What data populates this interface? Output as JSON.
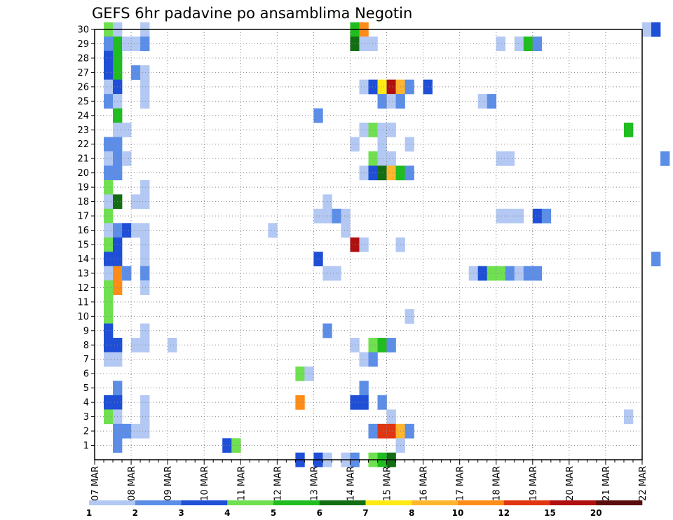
{
  "chart_data": {
    "type": "heatmap",
    "title": "GEFS 6hr padavine po ansamblima Negotin",
    "xlabel": "",
    "ylabel": "",
    "x_tick_labels": [
      "07 MAR",
      "08 MAR",
      "09 MAR",
      "10 MAR",
      "11 MAR",
      "12 MAR",
      "13 MAR",
      "14 MAR",
      "15 MAR",
      "16 MAR",
      "17 MAR",
      "18 MAR",
      "19 MAR",
      "20 MAR",
      "21 MAR",
      "22 MAR"
    ],
    "y_tick_labels": [
      "1",
      "2",
      "3",
      "4",
      "5",
      "6",
      "7",
      "8",
      "9",
      "10",
      "11",
      "12",
      "13",
      "14",
      "15",
      "16",
      "17",
      "18",
      "19",
      "20",
      "21",
      "22",
      "23",
      "24",
      "25",
      "26",
      "27",
      "28",
      "29",
      "30"
    ],
    "x_range_days": [
      0,
      15
    ],
    "y_range": [
      0,
      30
    ],
    "steps_per_day": 4,
    "grid": true,
    "legend": {
      "placement": "bottom",
      "labels": [
        "1",
        "2",
        "3",
        "4",
        "5",
        "6",
        "7",
        "8",
        "10",
        "12",
        "15",
        "20"
      ],
      "colors": [
        "#b3c8f3",
        "#5c8ee8",
        "#1f4fd6",
        "#6fe050",
        "#1fbd1f",
        "#136e13",
        "#ffea14",
        "#ffb62d",
        "#ff8c17",
        "#e03510",
        "#b00f0f",
        "#5a0c0c"
      ]
    },
    "cells_note": "Each cell: [member, start_step, length_in_steps, color_class]. Step = 6 hours from 07 MAR 00Z. Color class 0..11 indexes legend.colors.",
    "cells": [
      [
        30,
        1,
        1,
        3
      ],
      [
        30,
        2,
        1,
        0
      ],
      [
        30,
        5,
        1,
        0
      ],
      [
        30,
        28,
        1,
        4
      ],
      [
        30,
        29,
        1,
        8
      ],
      [
        30,
        60,
        1,
        0
      ],
      [
        30,
        61,
        1,
        2
      ],
      [
        29,
        1,
        1,
        1
      ],
      [
        29,
        2,
        1,
        4
      ],
      [
        29,
        3,
        1,
        0
      ],
      [
        29,
        4,
        1,
        0
      ],
      [
        29,
        5,
        1,
        1
      ],
      [
        29,
        28,
        1,
        5
      ],
      [
        29,
        29,
        2,
        0
      ],
      [
        29,
        44,
        1,
        0
      ],
      [
        29,
        46,
        1,
        0
      ],
      [
        29,
        47,
        1,
        4
      ],
      [
        29,
        48,
        1,
        1
      ],
      [
        28,
        1,
        1,
        2
      ],
      [
        28,
        2,
        1,
        4
      ],
      [
        27,
        1,
        1,
        2
      ],
      [
        27,
        2,
        1,
        4
      ],
      [
        27,
        4,
        1,
        1
      ],
      [
        27,
        5,
        1,
        0
      ],
      [
        26,
        1,
        1,
        0
      ],
      [
        26,
        2,
        1,
        2
      ],
      [
        26,
        5,
        1,
        0
      ],
      [
        26,
        29,
        1,
        0
      ],
      [
        26,
        30,
        1,
        2
      ],
      [
        26,
        31,
        1,
        6
      ],
      [
        26,
        32,
        1,
        10
      ],
      [
        26,
        33,
        1,
        7
      ],
      [
        26,
        34,
        1,
        1
      ],
      [
        26,
        36,
        1,
        2
      ],
      [
        25,
        1,
        1,
        1
      ],
      [
        25,
        2,
        1,
        0
      ],
      [
        25,
        5,
        1,
        0
      ],
      [
        25,
        31,
        1,
        1
      ],
      [
        25,
        32,
        1,
        0
      ],
      [
        25,
        33,
        1,
        1
      ],
      [
        25,
        42,
        1,
        0
      ],
      [
        25,
        43,
        1,
        1
      ],
      [
        24,
        2,
        1,
        4
      ],
      [
        24,
        24,
        1,
        1
      ],
      [
        23,
        2,
        2,
        0
      ],
      [
        23,
        29,
        1,
        0
      ],
      [
        23,
        30,
        1,
        3
      ],
      [
        23,
        31,
        2,
        0
      ],
      [
        23,
        58,
        1,
        4
      ],
      [
        22,
        1,
        2,
        1
      ],
      [
        22,
        28,
        1,
        0
      ],
      [
        22,
        31,
        1,
        0
      ],
      [
        22,
        34,
        1,
        0
      ],
      [
        21,
        1,
        1,
        0
      ],
      [
        21,
        2,
        1,
        1
      ],
      [
        21,
        3,
        1,
        0
      ],
      [
        21,
        30,
        1,
        3
      ],
      [
        21,
        31,
        2,
        0
      ],
      [
        21,
        44,
        2,
        0
      ],
      [
        21,
        62,
        1,
        1
      ],
      [
        20,
        1,
        2,
        1
      ],
      [
        20,
        29,
        1,
        0
      ],
      [
        20,
        30,
        1,
        2
      ],
      [
        20,
        31,
        1,
        5
      ],
      [
        20,
        32,
        1,
        7
      ],
      [
        20,
        33,
        1,
        4
      ],
      [
        20,
        34,
        1,
        1
      ],
      [
        19,
        1,
        1,
        3
      ],
      [
        19,
        5,
        1,
        0
      ],
      [
        19,
        64,
        2,
        0
      ],
      [
        18,
        1,
        1,
        0
      ],
      [
        18,
        2,
        1,
        5
      ],
      [
        18,
        4,
        2,
        0
      ],
      [
        18,
        25,
        1,
        0
      ],
      [
        18,
        68,
        1,
        3
      ],
      [
        18,
        69,
        1,
        0
      ],
      [
        17,
        1,
        1,
        3
      ],
      [
        17,
        24,
        2,
        0
      ],
      [
        17,
        26,
        1,
        1
      ],
      [
        17,
        27,
        1,
        0
      ],
      [
        17,
        44,
        3,
        0
      ],
      [
        17,
        48,
        1,
        2
      ],
      [
        17,
        49,
        1,
        1
      ],
      [
        16,
        1,
        1,
        0
      ],
      [
        16,
        2,
        1,
        1
      ],
      [
        16,
        3,
        1,
        2
      ],
      [
        16,
        4,
        2,
        0
      ],
      [
        16,
        19,
        1,
        0
      ],
      [
        16,
        27,
        1,
        0
      ],
      [
        16,
        66,
        1,
        2
      ],
      [
        15,
        1,
        1,
        3
      ],
      [
        15,
        2,
        1,
        2
      ],
      [
        15,
        5,
        1,
        0
      ],
      [
        15,
        28,
        1,
        10
      ],
      [
        15,
        29,
        1,
        0
      ],
      [
        15,
        33,
        1,
        0
      ],
      [
        14,
        1,
        2,
        2
      ],
      [
        14,
        5,
        1,
        0
      ],
      [
        14,
        24,
        1,
        2
      ],
      [
        14,
        61,
        1,
        1
      ],
      [
        14,
        69,
        2,
        0
      ],
      [
        13,
        1,
        1,
        0
      ],
      [
        13,
        2,
        1,
        8
      ],
      [
        13,
        3,
        1,
        1
      ],
      [
        13,
        5,
        1,
        1
      ],
      [
        13,
        25,
        2,
        0
      ],
      [
        13,
        41,
        1,
        0
      ],
      [
        13,
        42,
        1,
        2
      ],
      [
        13,
        43,
        2,
        3
      ],
      [
        13,
        45,
        1,
        1
      ],
      [
        13,
        46,
        1,
        0
      ],
      [
        13,
        47,
        2,
        1
      ],
      [
        12,
        1,
        1,
        3
      ],
      [
        12,
        2,
        1,
        8
      ],
      [
        12,
        5,
        1,
        0
      ],
      [
        11,
        1,
        1,
        3
      ],
      [
        10,
        1,
        1,
        3
      ],
      [
        10,
        34,
        1,
        0
      ],
      [
        9,
        1,
        1,
        2
      ],
      [
        9,
        5,
        1,
        0
      ],
      [
        9,
        25,
        1,
        1
      ],
      [
        8,
        1,
        2,
        2
      ],
      [
        8,
        4,
        2,
        0
      ],
      [
        8,
        8,
        1,
        0
      ],
      [
        8,
        28,
        1,
        0
      ],
      [
        8,
        30,
        1,
        3
      ],
      [
        8,
        31,
        1,
        4
      ],
      [
        8,
        32,
        1,
        1
      ],
      [
        7,
        1,
        2,
        0
      ],
      [
        7,
        29,
        1,
        0
      ],
      [
        7,
        30,
        1,
        1
      ],
      [
        7,
        64,
        1,
        1
      ],
      [
        7,
        69,
        1,
        2
      ],
      [
        6,
        22,
        1,
        3
      ],
      [
        6,
        23,
        1,
        0
      ],
      [
        5,
        2,
        1,
        1
      ],
      [
        5,
        29,
        1,
        1
      ],
      [
        4,
        1,
        2,
        2
      ],
      [
        4,
        5,
        1,
        0
      ],
      [
        4,
        22,
        1,
        8
      ],
      [
        4,
        28,
        2,
        2
      ],
      [
        4,
        31,
        1,
        1
      ],
      [
        3,
        1,
        1,
        3
      ],
      [
        3,
        2,
        1,
        0
      ],
      [
        3,
        5,
        1,
        0
      ],
      [
        3,
        32,
        1,
        0
      ],
      [
        3,
        58,
        1,
        0
      ],
      [
        3,
        65,
        2,
        1
      ],
      [
        3,
        67,
        1,
        5
      ],
      [
        3,
        68,
        1,
        0
      ],
      [
        2,
        2,
        2,
        1
      ],
      [
        2,
        4,
        2,
        0
      ],
      [
        2,
        30,
        1,
        1
      ],
      [
        2,
        31,
        2,
        9
      ],
      [
        2,
        33,
        1,
        7
      ],
      [
        2,
        34,
        1,
        1
      ],
      [
        1,
        2,
        1,
        1
      ],
      [
        1,
        14,
        1,
        2
      ],
      [
        1,
        15,
        1,
        3
      ],
      [
        1,
        33,
        1,
        0
      ],
      [
        1,
        69,
        1,
        0
      ],
      [
        0,
        22,
        1,
        2
      ],
      [
        0,
        24,
        1,
        2
      ],
      [
        0,
        25,
        1,
        0
      ],
      [
        0,
        27,
        1,
        0
      ],
      [
        0,
        28,
        1,
        1
      ],
      [
        0,
        30,
        1,
        3
      ],
      [
        0,
        31,
        1,
        4
      ],
      [
        0,
        32,
        1,
        5
      ]
    ]
  }
}
